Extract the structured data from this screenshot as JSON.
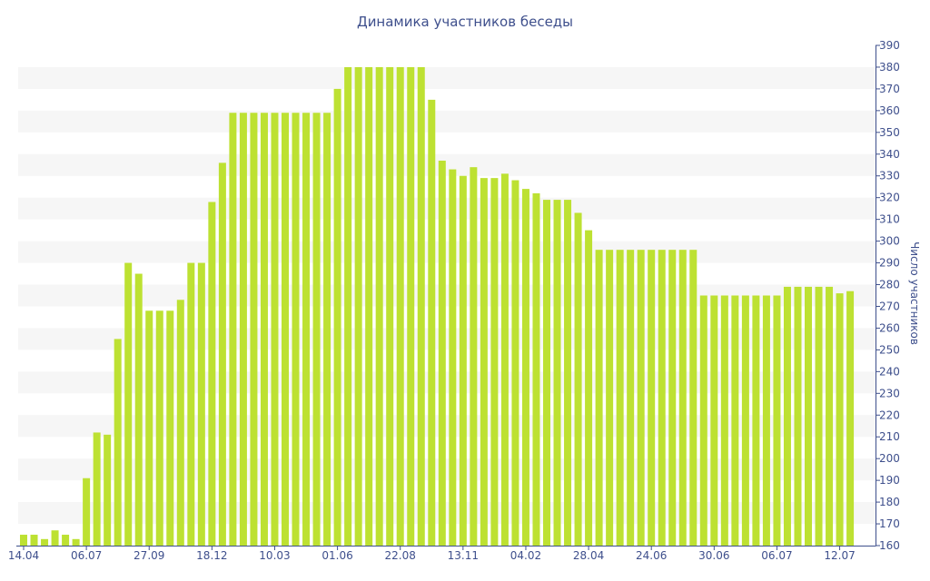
{
  "colors": {
    "bar": "#bde132",
    "band": "#f6f6f6",
    "axis": "#3e4f8c",
    "text": "#3e4f8c"
  },
  "chart_data": {
    "type": "bar",
    "title": "Динамика участников беседы",
    "ylabel": "Число участников",
    "ylim": [
      160,
      390
    ],
    "ytick_step": 10,
    "y_axis_side": "right",
    "grid": "alternating horizontal bands",
    "legend": "none",
    "xtick_labels": [
      {
        "index": 0,
        "label": "14.04"
      },
      {
        "index": 6,
        "label": "06.07"
      },
      {
        "index": 12,
        "label": "27.09"
      },
      {
        "index": 18,
        "label": "18.12"
      },
      {
        "index": 24,
        "label": "10.03"
      },
      {
        "index": 30,
        "label": "01.06"
      },
      {
        "index": 36,
        "label": "22.08"
      },
      {
        "index": 42,
        "label": "13.11"
      },
      {
        "index": 48,
        "label": "04.02"
      },
      {
        "index": 54,
        "label": "28.04"
      },
      {
        "index": 60,
        "label": "24.06"
      },
      {
        "index": 66,
        "label": "30.06"
      },
      {
        "index": 72,
        "label": "06.07"
      },
      {
        "index": 78,
        "label": "12.07"
      }
    ],
    "values": [
      165,
      165,
      163,
      167,
      165,
      163,
      191,
      212,
      211,
      255,
      290,
      285,
      268,
      268,
      268,
      273,
      290,
      290,
      318,
      336,
      359,
      359,
      359,
      359,
      359,
      359,
      359,
      359,
      359,
      359,
      370,
      380,
      380,
      380,
      380,
      380,
      380,
      380,
      380,
      365,
      337,
      333,
      330,
      334,
      329,
      329,
      331,
      328,
      324,
      322,
      319,
      319,
      319,
      313,
      305,
      296,
      296,
      296,
      296,
      296,
      296,
      296,
      296,
      296,
      296,
      275,
      275,
      275,
      275,
      275,
      275,
      275,
      275,
      279,
      279,
      279,
      279,
      279,
      276,
      277
    ]
  }
}
